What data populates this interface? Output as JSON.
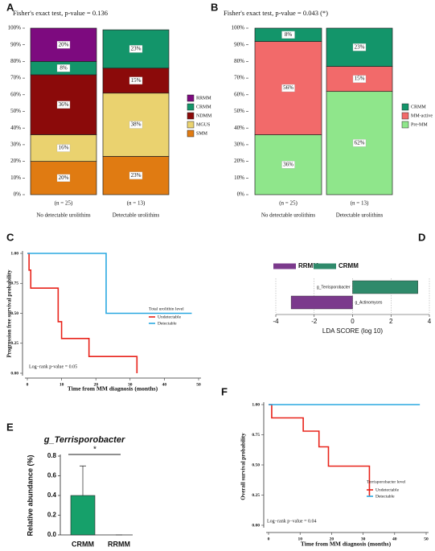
{
  "chart_data": [
    {
      "type": "stacked_bar",
      "panel": "A",
      "title": "Fisher's exact test, p-value = 0.136",
      "categories": [
        "No detectable urolithins",
        "Detectable urolithins"
      ],
      "n_labels": [
        "(n = 25)",
        "(n = 13)"
      ],
      "series": [
        {
          "name": "SMM",
          "color": "#e07b12",
          "values": [
            20,
            23
          ],
          "value_labels": [
            "20%",
            "23%"
          ]
        },
        {
          "name": "MGUS",
          "color": "#ead26f",
          "values": [
            16,
            38
          ],
          "value_labels": [
            "16%",
            "38%"
          ]
        },
        {
          "name": "NDMM",
          "color": "#8b0a0a",
          "values": [
            36,
            15
          ],
          "value_labels": [
            "36%",
            "15%"
          ]
        },
        {
          "name": "CRMM",
          "color": "#13956a",
          "values": [
            8,
            23
          ],
          "value_labels": [
            "8%",
            "23%"
          ]
        },
        {
          "name": "RRMM",
          "color": "#7d0a7f",
          "values": [
            20,
            0
          ],
          "value_labels": [
            "20%",
            null
          ]
        }
      ],
      "ylim": [
        0,
        100
      ],
      "yticks": [
        {
          "value": 0,
          "label": "0%"
        },
        {
          "value": 10,
          "label": "10%"
        },
        {
          "value": 20,
          "label": "20%"
        },
        {
          "value": 30,
          "label": "30%"
        },
        {
          "value": 40,
          "label": "40%"
        },
        {
          "value": 50,
          "label": "50%"
        },
        {
          "value": 60,
          "label": "60%"
        },
        {
          "value": 70,
          "label": "70%"
        },
        {
          "value": 80,
          "label": "80%"
        },
        {
          "value": 90,
          "label": "90%"
        },
        {
          "value": 100,
          "label": "100%"
        }
      ]
    },
    {
      "type": "stacked_bar",
      "panel": "B",
      "title": "Fisher's exact test, p-value = 0.043  (*)",
      "categories": [
        "No detectable urolithins",
        "Detectable urolithins"
      ],
      "n_labels": [
        "(n = 25)",
        "(n = 13)"
      ],
      "series": [
        {
          "name": "Pre-MM",
          "color": "#8fe68b",
          "values": [
            36,
            62
          ],
          "value_labels": [
            "36%",
            "62%"
          ]
        },
        {
          "name": "MM-active",
          "color": "#f26a6a",
          "values": [
            56,
            15
          ],
          "value_labels": [
            "56%",
            "15%"
          ]
        },
        {
          "name": "CRMM",
          "color": "#13956a",
          "values": [
            8,
            23
          ],
          "value_labels": [
            "8%",
            "23%"
          ]
        }
      ],
      "ylim": [
        0,
        100
      ],
      "yticks": [
        {
          "value": 0,
          "label": "0%"
        },
        {
          "value": 10,
          "label": "10%"
        },
        {
          "value": 20,
          "label": "20%"
        },
        {
          "value": 30,
          "label": "30%"
        },
        {
          "value": 40,
          "label": "40%"
        },
        {
          "value": 50,
          "label": "50%"
        },
        {
          "value": 60,
          "label": "60%"
        },
        {
          "value": 70,
          "label": "70%"
        },
        {
          "value": 80,
          "label": "80%"
        },
        {
          "value": 90,
          "label": "90%"
        },
        {
          "value": 100,
          "label": "100%"
        }
      ]
    },
    {
      "type": "km",
      "panel": "C",
      "xlabel": "Time from MM diagnosis (months)",
      "ylabel": "Progression free survival probability",
      "legend_title": "Total urolithin level",
      "annotation": "Log−rank p-value = 0.05",
      "series": [
        {
          "name": "Undetectable",
          "color": "#e8231a",
          "x": [
            0,
            0.5,
            0.5,
            1,
            1,
            9,
            9,
            10,
            10,
            18,
            18,
            32,
            32
          ],
          "values": [
            1,
            1,
            0.86,
            0.86,
            0.71,
            0.71,
            0.43,
            0.43,
            0.29,
            0.29,
            0.14,
            0.14,
            0
          ]
        },
        {
          "name": "Detectable",
          "color": "#2aa8e0",
          "x": [
            0,
            23,
            23,
            48
          ],
          "values": [
            1,
            1,
            0.5,
            0.5
          ]
        }
      ],
      "xlim": [
        0,
        50
      ],
      "xticks": [
        0,
        10,
        20,
        30,
        40,
        50
      ],
      "ylim": [
        0,
        1
      ],
      "yticks": [
        {
          "value": 0,
          "label": "0.00"
        },
        0.25,
        {
          "value": 0.5,
          "label": "0.50"
        },
        0.75,
        {
          "value": 1,
          "label": "1.00"
        }
      ]
    },
    {
      "type": "lda",
      "panel": "D",
      "xlabel": "LDA SCORE (log 10)",
      "categories": [
        "g_Terrisporobacter",
        "g_Actinomyces"
      ],
      "values": [
        3.4,
        -3.2
      ],
      "colors": [
        "#2f8a6b",
        "#7b3a8c"
      ],
      "legend": [
        {
          "name": "RRMM",
          "color": "#7b3a8c"
        },
        {
          "name": "CRMM",
          "color": "#2f8a6b"
        }
      ],
      "xlim": [
        -4,
        4
      ],
      "xticks": [
        -4,
        -2,
        0,
        2,
        4
      ]
    },
    {
      "type": "errbar",
      "panel": "E",
      "title": "g_Terrisporobacter",
      "ylabel": "Relative abundance (%)",
      "annotation": "*",
      "categories": [
        "CRMM",
        "RRMM"
      ],
      "values": [
        0.4,
        0
      ],
      "errors": [
        0.3,
        0
      ],
      "color": "#16a06a",
      "ylim": [
        0,
        0.8
      ],
      "yticks": [
        {
          "value": 0,
          "label": "0.0"
        },
        0.2,
        0.4,
        0.6,
        0.8
      ]
    },
    {
      "type": "km",
      "panel": "F",
      "xlabel": "Time from MM diagnosis (months)",
      "ylabel": "Overall survival probability",
      "legend_title": "Terrisporobacter level",
      "annotation": "Log−rank p−value = 0.04",
      "series": [
        {
          "name": "Undetectable",
          "color": "#e8231a",
          "x": [
            0,
            1,
            1,
            11,
            11,
            16,
            16,
            19,
            19,
            32,
            32
          ],
          "values": [
            1,
            1,
            0.89,
            0.89,
            0.78,
            0.78,
            0.65,
            0.65,
            0.49,
            0.49,
            0.24
          ]
        },
        {
          "name": "Detectable",
          "color": "#2aa8e0",
          "x": [
            0,
            48
          ],
          "values": [
            1,
            1
          ]
        }
      ],
      "xlim": [
        0,
        50
      ],
      "xticks": [
        0,
        10,
        20,
        30,
        40,
        50
      ],
      "ylim": [
        0,
        1
      ],
      "yticks": [
        {
          "value": 0,
          "label": "0.00"
        },
        0.25,
        {
          "value": 0.5,
          "label": "0.50"
        },
        0.75,
        {
          "value": 1,
          "label": "1.00"
        }
      ]
    }
  ]
}
